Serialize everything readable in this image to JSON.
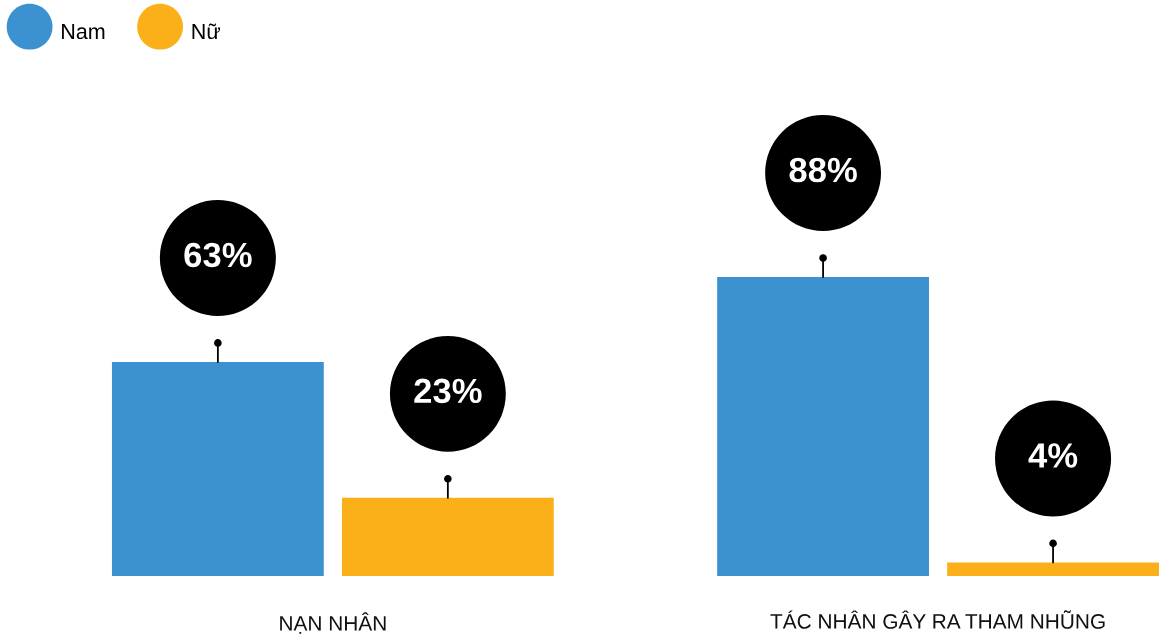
{
  "chart_data": {
    "type": "bar",
    "categories": [
      "NẠN NHÂN",
      "TÁC NHÂN GÂY RA THAM NHŨNG"
    ],
    "series": [
      {
        "name": "Nam",
        "color": "#3c92d0",
        "values": [
          63,
          88
        ],
        "value_labels": [
          "63%",
          "88%"
        ]
      },
      {
        "name": "Nữ",
        "color": "#fbb01a",
        "values": [
          23,
          4
        ],
        "value_labels": [
          "23%",
          "4%"
        ]
      }
    ],
    "legend": "top left",
    "tick_labels": "x"
  }
}
